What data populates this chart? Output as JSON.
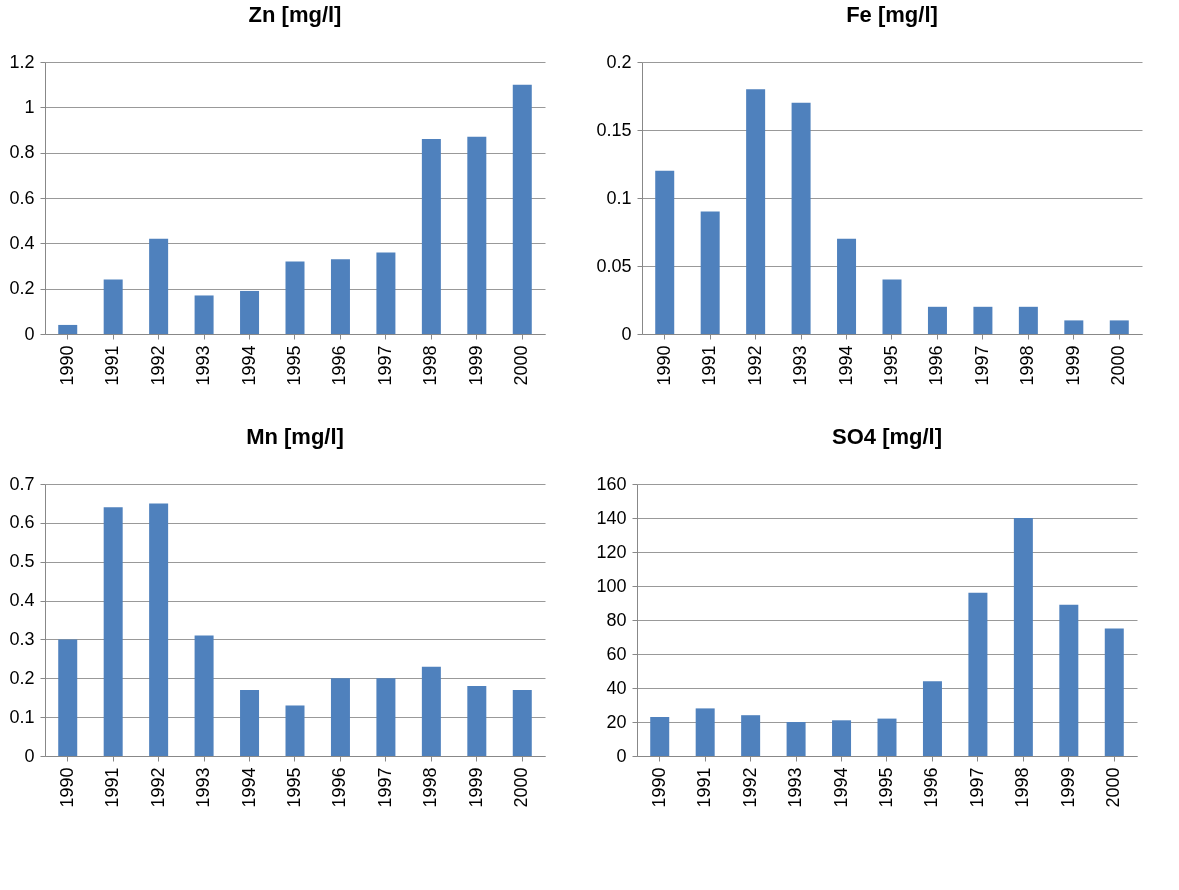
{
  "chart_data": [
    {
      "type": "bar",
      "title": "Zn [mg/l]",
      "categories": [
        "1990",
        "1991",
        "1992",
        "1993",
        "1994",
        "1995",
        "1996",
        "1997",
        "1998",
        "1999",
        "2000"
      ],
      "values": [
        0.04,
        0.24,
        0.42,
        0.17,
        0.19,
        0.32,
        0.33,
        0.36,
        0.86,
        0.87,
        1.1
      ],
      "color": "#4f81bd",
      "ylim": [
        0,
        1.2
      ],
      "yticks": [
        0,
        0.2,
        0.4,
        0.6,
        0.8,
        1,
        1.2
      ],
      "grid": "y"
    },
    {
      "type": "bar",
      "title": "Fe [mg/l]",
      "categories": [
        "1990",
        "1991",
        "1992",
        "1993",
        "1994",
        "1995",
        "1996",
        "1997",
        "1998",
        "1999",
        "2000"
      ],
      "values": [
        0.12,
        0.09,
        0.18,
        0.17,
        0.07,
        0.04,
        0.02,
        0.02,
        0.02,
        0.01,
        0.01
      ],
      "color": "#4f81bd",
      "ylim": [
        0,
        0.2
      ],
      "yticks": [
        0,
        0.05,
        0.1,
        0.15,
        0.2
      ],
      "grid": "y"
    },
    {
      "type": "bar",
      "title": "Mn [mg/l]",
      "categories": [
        "1990",
        "1991",
        "1992",
        "1993",
        "1994",
        "1995",
        "1996",
        "1997",
        "1998",
        "1999",
        "2000"
      ],
      "values": [
        0.3,
        0.64,
        0.65,
        0.31,
        0.17,
        0.13,
        0.2,
        0.2,
        0.23,
        0.18,
        0.17
      ],
      "color": "#4f81bd",
      "ylim": [
        0,
        0.7
      ],
      "yticks": [
        0,
        0.1,
        0.2,
        0.3,
        0.4,
        0.5,
        0.6,
        0.7
      ],
      "grid": "y"
    },
    {
      "type": "bar",
      "title": "SO4 [mg/l]",
      "categories": [
        "1990",
        "1991",
        "1992",
        "1993",
        "1994",
        "1995",
        "1996",
        "1997",
        "1998",
        "1999",
        "2000"
      ],
      "values": [
        23,
        28,
        24,
        20,
        21,
        22,
        44,
        96,
        140,
        89,
        75
      ],
      "color": "#4f81bd",
      "ylim": [
        0,
        160
      ],
      "yticks": [
        0,
        20,
        40,
        60,
        80,
        100,
        120,
        140,
        160
      ],
      "grid": "y"
    }
  ]
}
